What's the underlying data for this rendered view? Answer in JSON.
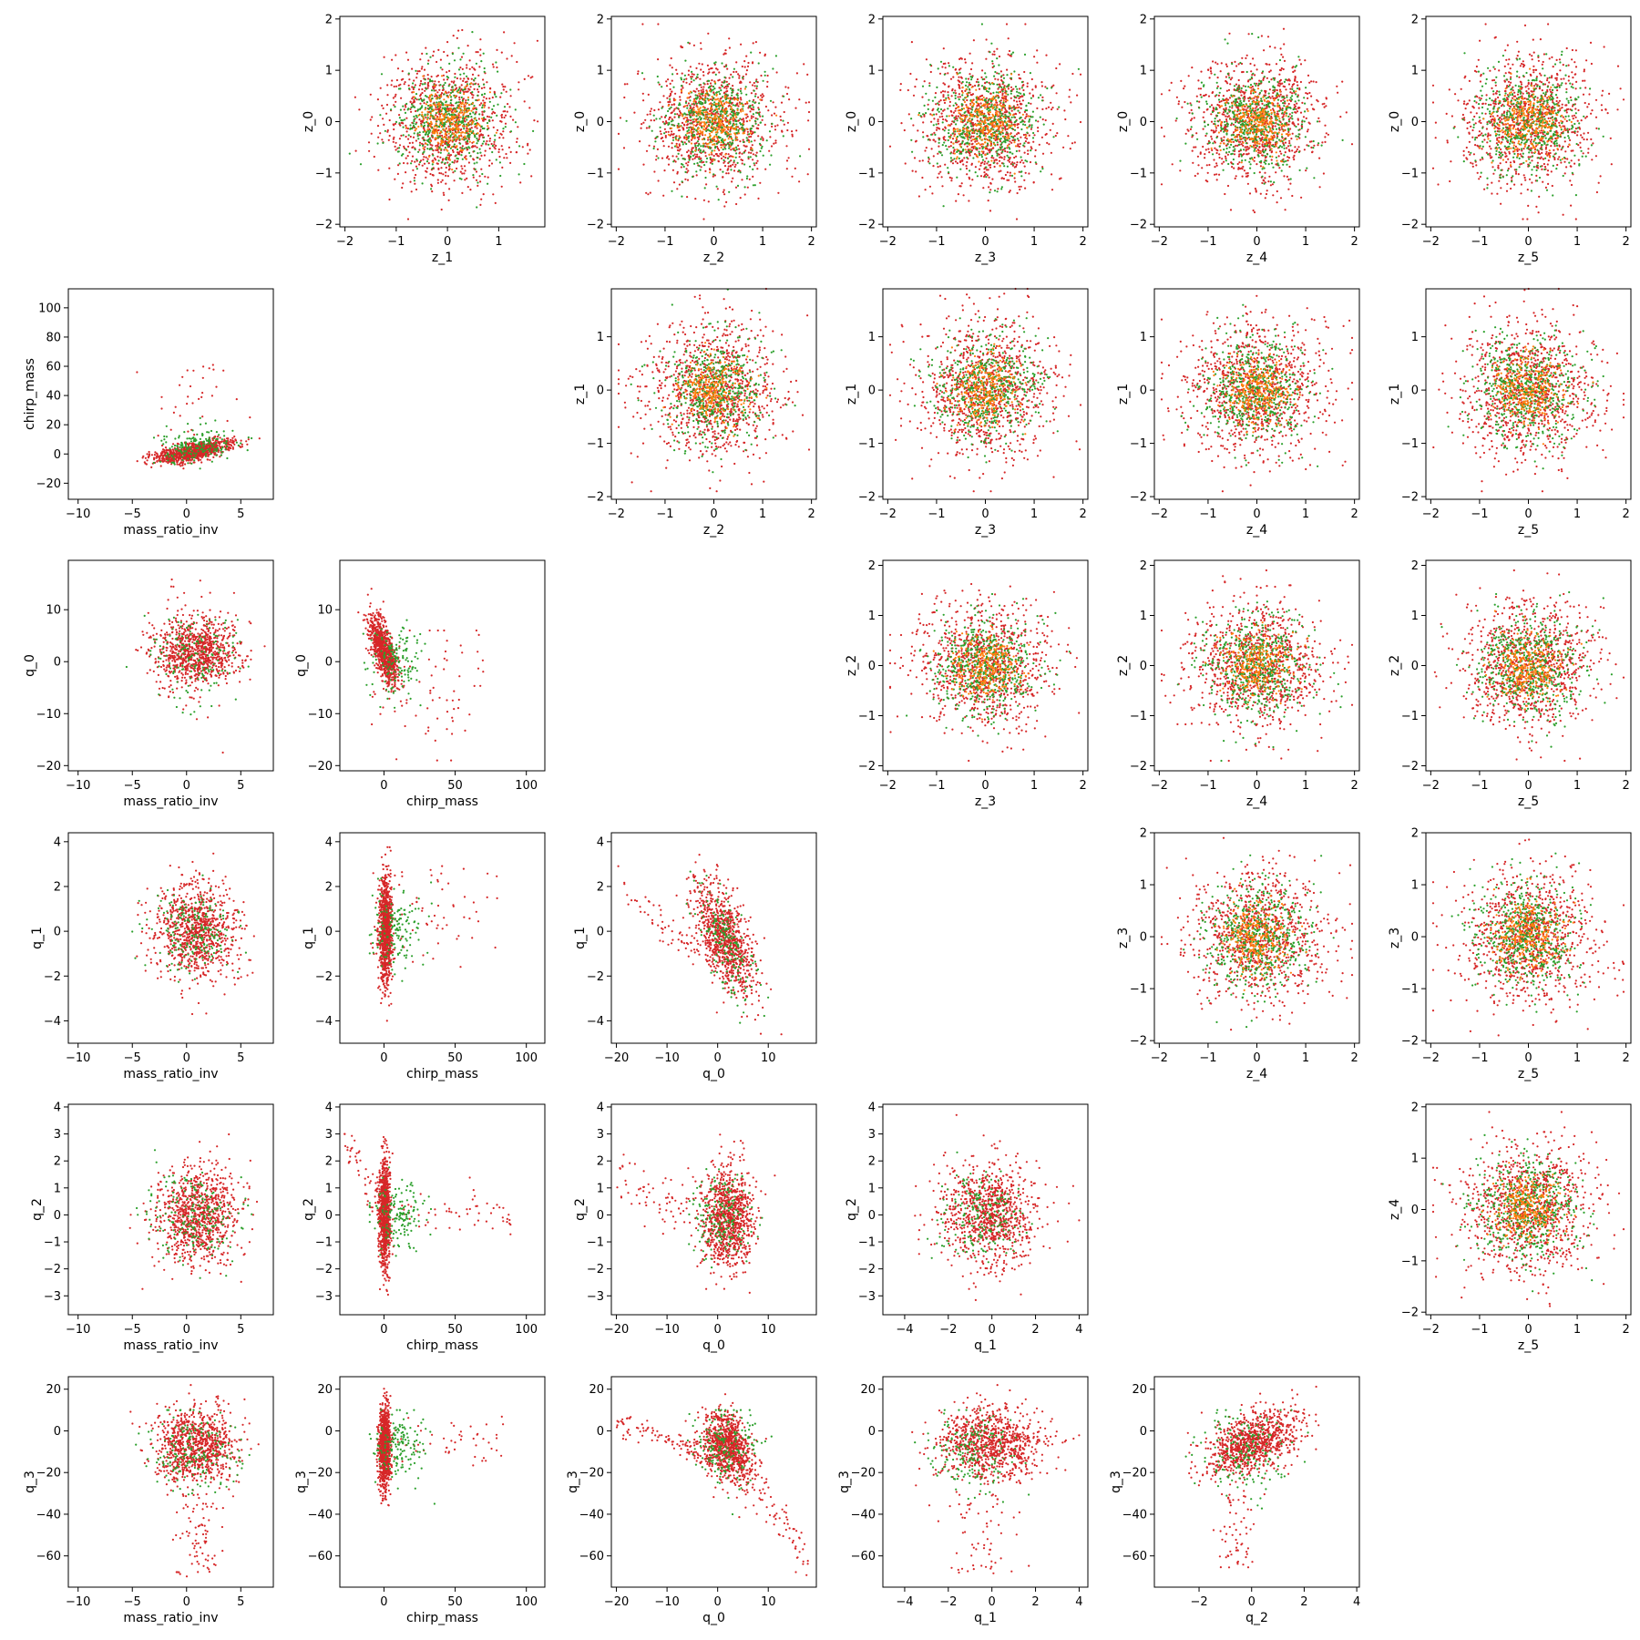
{
  "colors": {
    "red": "#d62728",
    "green": "#2ca02c",
    "orange": "#ff7f0e"
  },
  "chart_data": [
    {
      "type": "scatter",
      "row": 0,
      "col": 1,
      "xlabel": "z_1",
      "ylabel": "z_0",
      "xlim": [
        -2.1,
        1.9
      ],
      "ylim": [
        -2.05,
        2.05
      ],
      "xticks": [
        -2,
        -1,
        0,
        1
      ],
      "yticks": [
        -2,
        -1,
        0,
        1,
        2
      ],
      "pattern": "gauss",
      "params": {
        "mx": 0,
        "my": 0,
        "sx": 0.65,
        "sy": 0.65
      }
    },
    {
      "type": "scatter",
      "row": 0,
      "col": 2,
      "xlabel": "z_2",
      "ylabel": "z_0",
      "xlim": [
        -2.1,
        2.1
      ],
      "ylim": [
        -2.05,
        2.05
      ],
      "xticks": [
        -2,
        -1,
        0,
        1,
        2
      ],
      "yticks": [
        -2,
        -1,
        0,
        1,
        2
      ],
      "pattern": "gauss",
      "params": {
        "mx": 0,
        "my": 0,
        "sx": 0.7,
        "sy": 0.65
      }
    },
    {
      "type": "scatter",
      "row": 0,
      "col": 3,
      "xlabel": "z_3",
      "ylabel": "z_0",
      "xlim": [
        -2.1,
        2.1
      ],
      "ylim": [
        -2.05,
        2.05
      ],
      "xticks": [
        -2,
        -1,
        0,
        1,
        2
      ],
      "yticks": [
        -2,
        -1,
        0,
        1,
        2
      ],
      "pattern": "gauss",
      "params": {
        "mx": 0,
        "my": 0,
        "sx": 0.7,
        "sy": 0.65
      }
    },
    {
      "type": "scatter",
      "row": 0,
      "col": 4,
      "xlabel": "z_4",
      "ylabel": "z_0",
      "xlim": [
        -2.1,
        2.1
      ],
      "ylim": [
        -2.05,
        2.05
      ],
      "xticks": [
        -2,
        -1,
        0,
        1,
        2
      ],
      "yticks": [
        -2,
        -1,
        0,
        1,
        2
      ],
      "pattern": "gauss",
      "params": {
        "mx": 0,
        "my": 0,
        "sx": 0.7,
        "sy": 0.65
      }
    },
    {
      "type": "scatter",
      "row": 0,
      "col": 5,
      "xlabel": "z_5",
      "ylabel": "z_0",
      "xlim": [
        -2.1,
        2.1
      ],
      "ylim": [
        -2.05,
        2.05
      ],
      "xticks": [
        -2,
        -1,
        0,
        1,
        2
      ],
      "yticks": [
        -2,
        -1,
        0,
        1,
        2
      ],
      "pattern": "gauss",
      "params": {
        "mx": 0,
        "my": 0,
        "sx": 0.7,
        "sy": 0.65
      }
    },
    {
      "type": "scatter",
      "row": 1,
      "col": 0,
      "xlabel": "mass_ratio_inv",
      "ylabel": "chirp_mass",
      "xlim": [
        -10.9,
        8.0
      ],
      "ylim": [
        -31,
        113
      ],
      "xticks": [
        -10,
        -5,
        0,
        5
      ],
      "yticks": [
        -20,
        0,
        20,
        40,
        60,
        80,
        100
      ],
      "pattern": "chirp_vs_mri",
      "params": {}
    },
    {
      "type": "scatter",
      "row": 1,
      "col": 2,
      "xlabel": "z_2",
      "ylabel": "z_1",
      "xlim": [
        -2.1,
        2.1
      ],
      "ylim": [
        -2.05,
        1.9
      ],
      "xticks": [
        -2,
        -1,
        0,
        1,
        2
      ],
      "yticks": [
        -2,
        -1,
        0,
        1
      ],
      "pattern": "gauss",
      "params": {
        "mx": 0,
        "my": 0,
        "sx": 0.7,
        "sy": 0.65
      }
    },
    {
      "type": "scatter",
      "row": 1,
      "col": 3,
      "xlabel": "z_3",
      "ylabel": "z_1",
      "xlim": [
        -2.1,
        2.1
      ],
      "ylim": [
        -2.05,
        1.9
      ],
      "xticks": [
        -2,
        -1,
        0,
        1,
        2
      ],
      "yticks": [
        -2,
        -1,
        0,
        1
      ],
      "pattern": "gauss",
      "params": {
        "mx": 0,
        "my": 0,
        "sx": 0.7,
        "sy": 0.65
      }
    },
    {
      "type": "scatter",
      "row": 1,
      "col": 4,
      "xlabel": "z_4",
      "ylabel": "z_1",
      "xlim": [
        -2.1,
        2.1
      ],
      "ylim": [
        -2.05,
        1.9
      ],
      "xticks": [
        -2,
        -1,
        0,
        1,
        2
      ],
      "yticks": [
        -2,
        -1,
        0,
        1
      ],
      "pattern": "gauss",
      "params": {
        "mx": 0,
        "my": 0,
        "sx": 0.7,
        "sy": 0.65
      }
    },
    {
      "type": "scatter",
      "row": 1,
      "col": 5,
      "xlabel": "z_5",
      "ylabel": "z_1",
      "xlim": [
        -2.1,
        2.1
      ],
      "ylim": [
        -2.05,
        1.9
      ],
      "xticks": [
        -2,
        -1,
        0,
        1,
        2
      ],
      "yticks": [
        -2,
        -1,
        0,
        1
      ],
      "pattern": "gauss",
      "params": {
        "mx": 0,
        "my": 0,
        "sx": 0.7,
        "sy": 0.65
      }
    },
    {
      "type": "scatter",
      "row": 2,
      "col": 0,
      "xlabel": "mass_ratio_inv",
      "ylabel": "q_0",
      "xlim": [
        -10.9,
        8.0
      ],
      "ylim": [
        -21,
        19.5
      ],
      "xticks": [
        -10,
        -5,
        0,
        5
      ],
      "yticks": [
        -20,
        -10,
        0,
        10
      ],
      "pattern": "q0_vs_mri",
      "params": {}
    },
    {
      "type": "scatter",
      "row": 2,
      "col": 1,
      "xlabel": "chirp_mass",
      "ylabel": "q_0",
      "xlim": [
        -31,
        113
      ],
      "ylim": [
        -21,
        19.5
      ],
      "xticks": [
        0,
        50,
        100
      ],
      "yticks": [
        -20,
        -10,
        0,
        10
      ],
      "pattern": "q0_vs_chirp",
      "params": {}
    },
    {
      "type": "scatter",
      "row": 2,
      "col": 3,
      "xlabel": "z_3",
      "ylabel": "z_2",
      "xlim": [
        -2.1,
        2.1
      ],
      "ylim": [
        -2.1,
        2.1
      ],
      "xticks": [
        -2,
        -1,
        0,
        1,
        2
      ],
      "yticks": [
        -2,
        -1,
        0,
        1,
        2
      ],
      "pattern": "gauss",
      "params": {
        "mx": 0,
        "my": 0,
        "sx": 0.7,
        "sy": 0.65
      }
    },
    {
      "type": "scatter",
      "row": 2,
      "col": 4,
      "xlabel": "z_4",
      "ylabel": "z_2",
      "xlim": [
        -2.1,
        2.1
      ],
      "ylim": [
        -2.1,
        2.1
      ],
      "xticks": [
        -2,
        -1,
        0,
        1,
        2
      ],
      "yticks": [
        -2,
        -1,
        0,
        1,
        2
      ],
      "pattern": "gauss",
      "params": {
        "mx": 0,
        "my": 0,
        "sx": 0.7,
        "sy": 0.65
      }
    },
    {
      "type": "scatter",
      "row": 2,
      "col": 5,
      "xlabel": "z_5",
      "ylabel": "z_2",
      "xlim": [
        -2.1,
        2.1
      ],
      "ylim": [
        -2.1,
        2.1
      ],
      "xticks": [
        -2,
        -1,
        0,
        1,
        2
      ],
      "yticks": [
        -2,
        -1,
        0,
        1,
        2
      ],
      "pattern": "gauss",
      "params": {
        "mx": 0,
        "my": 0,
        "sx": 0.7,
        "sy": 0.65
      }
    },
    {
      "type": "scatter",
      "row": 3,
      "col": 0,
      "xlabel": "mass_ratio_inv",
      "ylabel": "q_1",
      "xlim": [
        -10.9,
        8.0
      ],
      "ylim": [
        -5.0,
        4.4
      ],
      "xticks": [
        -10,
        -5,
        0,
        5
      ],
      "yticks": [
        -4,
        -2,
        0,
        2,
        4
      ],
      "pattern": "q1_vs_mri",
      "params": {}
    },
    {
      "type": "scatter",
      "row": 3,
      "col": 1,
      "xlabel": "chirp_mass",
      "ylabel": "q_1",
      "xlim": [
        -31,
        113
      ],
      "ylim": [
        -5.0,
        4.4
      ],
      "xticks": [
        0,
        50,
        100
      ],
      "yticks": [
        -4,
        -2,
        0,
        2,
        4
      ],
      "pattern": "q1_vs_chirp",
      "params": {}
    },
    {
      "type": "scatter",
      "row": 3,
      "col": 2,
      "xlabel": "q_0",
      "ylabel": "q_1",
      "xlim": [
        -21,
        19.5
      ],
      "ylim": [
        -5.0,
        4.4
      ],
      "xticks": [
        -20,
        -10,
        0,
        10
      ],
      "yticks": [
        -4,
        -2,
        0,
        2,
        4
      ],
      "pattern": "q1_vs_q0",
      "params": {}
    },
    {
      "type": "scatter",
      "row": 3,
      "col": 4,
      "xlabel": "z_4",
      "ylabel": "z_3",
      "xlim": [
        -2.1,
        2.1
      ],
      "ylim": [
        -2.05,
        2.0
      ],
      "xticks": [
        -2,
        -1,
        0,
        1,
        2
      ],
      "yticks": [
        -2,
        -1,
        0,
        1,
        2
      ],
      "pattern": "gauss",
      "params": {
        "mx": 0,
        "my": 0,
        "sx": 0.7,
        "sy": 0.65
      }
    },
    {
      "type": "scatter",
      "row": 3,
      "col": 5,
      "xlabel": "z_5",
      "ylabel": "z_3",
      "xlim": [
        -2.1,
        2.1
      ],
      "ylim": [
        -2.05,
        2.0
      ],
      "xticks": [
        -2,
        -1,
        0,
        1,
        2
      ],
      "yticks": [
        -2,
        -1,
        0,
        1,
        2
      ],
      "pattern": "gauss",
      "params": {
        "mx": 0,
        "my": 0,
        "sx": 0.7,
        "sy": 0.65
      }
    },
    {
      "type": "scatter",
      "row": 4,
      "col": 0,
      "xlabel": "mass_ratio_inv",
      "ylabel": "q_2",
      "xlim": [
        -10.9,
        8.0
      ],
      "ylim": [
        -3.7,
        4.1
      ],
      "xticks": [
        -10,
        -5,
        0,
        5
      ],
      "yticks": [
        -3,
        -2,
        -1,
        0,
        1,
        2,
        3,
        4
      ],
      "pattern": "q2_vs_mri",
      "params": {}
    },
    {
      "type": "scatter",
      "row": 4,
      "col": 1,
      "xlabel": "chirp_mass",
      "ylabel": "q_2",
      "xlim": [
        -31,
        113
      ],
      "ylim": [
        -3.7,
        4.1
      ],
      "xticks": [
        0,
        50,
        100
      ],
      "yticks": [
        -3,
        -2,
        -1,
        0,
        1,
        2,
        3,
        4
      ],
      "pattern": "q2_vs_chirp",
      "params": {}
    },
    {
      "type": "scatter",
      "row": 4,
      "col": 2,
      "xlabel": "q_0",
      "ylabel": "q_2",
      "xlim": [
        -21,
        19.5
      ],
      "ylim": [
        -3.7,
        4.1
      ],
      "xticks": [
        -20,
        -10,
        0,
        10
      ],
      "yticks": [
        -3,
        -2,
        -1,
        0,
        1,
        2,
        3,
        4
      ],
      "pattern": "q2_vs_q0",
      "params": {}
    },
    {
      "type": "scatter",
      "row": 4,
      "col": 3,
      "xlabel": "q_1",
      "ylabel": "q_2",
      "xlim": [
        -5.0,
        4.4
      ],
      "ylim": [
        -3.7,
        4.1
      ],
      "xticks": [
        -4,
        -2,
        0,
        2,
        4
      ],
      "yticks": [
        -3,
        -2,
        -1,
        0,
        1,
        2,
        3,
        4
      ],
      "pattern": "q2_vs_q1",
      "params": {}
    },
    {
      "type": "scatter",
      "row": 4,
      "col": 5,
      "xlabel": "z_5",
      "ylabel": "z_4",
      "xlim": [
        -2.1,
        2.1
      ],
      "ylim": [
        -2.05,
        2.05
      ],
      "xticks": [
        -2,
        -1,
        0,
        1,
        2
      ],
      "yticks": [
        -2,
        -1,
        0,
        1,
        2
      ],
      "pattern": "gauss",
      "params": {
        "mx": 0,
        "my": 0,
        "sx": 0.7,
        "sy": 0.65
      }
    },
    {
      "type": "scatter",
      "row": 5,
      "col": 0,
      "xlabel": "mass_ratio_inv",
      "ylabel": "q_3",
      "xlim": [
        -10.9,
        8.0
      ],
      "ylim": [
        -75,
        26
      ],
      "xticks": [
        -10,
        -5,
        0,
        5
      ],
      "yticks": [
        -60,
        -40,
        -20,
        0,
        20
      ],
      "pattern": "q3_vs_mri",
      "params": {}
    },
    {
      "type": "scatter",
      "row": 5,
      "col": 1,
      "xlabel": "chirp_mass",
      "ylabel": "q_3",
      "xlim": [
        -31,
        113
      ],
      "ylim": [
        -75,
        26
      ],
      "xticks": [
        0,
        50,
        100
      ],
      "yticks": [
        -60,
        -40,
        -20,
        0,
        20
      ],
      "pattern": "q3_vs_chirp",
      "params": {}
    },
    {
      "type": "scatter",
      "row": 5,
      "col": 2,
      "xlabel": "q_0",
      "ylabel": "q_3",
      "xlim": [
        -21,
        19.5
      ],
      "ylim": [
        -75,
        26
      ],
      "xticks": [
        -20,
        -10,
        0,
        10
      ],
      "yticks": [
        -60,
        -40,
        -20,
        0,
        20
      ],
      "pattern": "q3_vs_q0",
      "params": {}
    },
    {
      "type": "scatter",
      "row": 5,
      "col": 3,
      "xlabel": "q_1",
      "ylabel": "q_3",
      "xlim": [
        -5.0,
        4.4
      ],
      "ylim": [
        -75,
        26
      ],
      "xticks": [
        -4,
        -2,
        0,
        2,
        4
      ],
      "yticks": [
        -60,
        -40,
        -20,
        0,
        20
      ],
      "pattern": "q3_vs_q1",
      "params": {}
    },
    {
      "type": "scatter",
      "row": 5,
      "col": 4,
      "xlabel": "q_2",
      "ylabel": "q_3",
      "xlim": [
        -3.7,
        4.1
      ],
      "ylim": [
        -75,
        26
      ],
      "xticks": [
        -2,
        0,
        2,
        4
      ],
      "yticks": [
        -60,
        -40,
        -20,
        0,
        20
      ],
      "pattern": "q3_vs_q2",
      "params": {}
    }
  ]
}
